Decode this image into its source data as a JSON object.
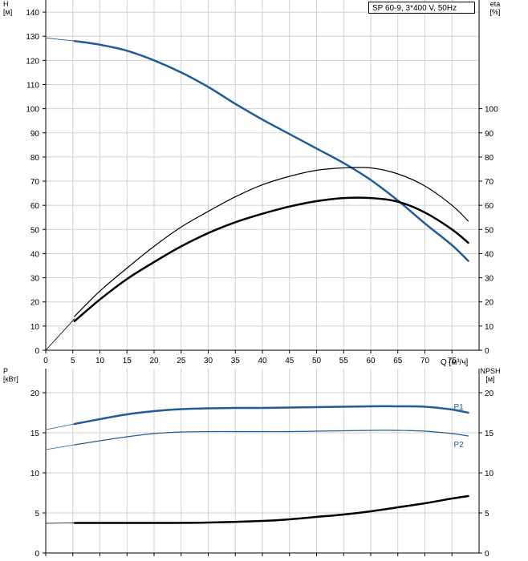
{
  "model_label": "SP 60-9, 3*400 V, 50Hz",
  "colors": {
    "blue": "#1f5c99",
    "black": "#000000",
    "grid": "#d0d0d0"
  },
  "chart_data": [
    {
      "type": "line",
      "title": "",
      "xlabel": "Q [м³/ч]",
      "ylabel": "H\n[м]",
      "y2label": "eta\n[%]",
      "xlim": [
        0,
        80
      ],
      "ylim": [
        0,
        145
      ],
      "y2lim": [
        0,
        145
      ],
      "xticks": [
        0,
        5,
        10,
        15,
        20,
        25,
        30,
        35,
        40,
        45,
        50,
        55,
        60,
        65,
        70,
        75
      ],
      "yticks": [
        0,
        10,
        20,
        30,
        40,
        50,
        60,
        70,
        80,
        90,
        100,
        110,
        120,
        130,
        140
      ],
      "y2ticks": [
        0,
        10,
        20,
        30,
        40,
        50,
        60,
        70,
        80,
        90,
        100
      ],
      "grid": true,
      "series": [
        {
          "key": "H",
          "color": "#1f5c99",
          "width": 2.5,
          "axis": "left",
          "x": [
            5.3,
            10,
            15,
            20,
            25,
            30,
            35,
            40,
            45,
            50,
            55,
            60,
            65,
            70,
            75,
            78
          ],
          "y": [
            128,
            126.5,
            124,
            120,
            115,
            109,
            102,
            95.5,
            89.5,
            83.5,
            77.5,
            70.5,
            62,
            52.5,
            43.5,
            37
          ]
        },
        {
          "key": "H-extension",
          "color": "#1f5c99",
          "width": 0.8,
          "axis": "left",
          "x": [
            0,
            5.3
          ],
          "y": [
            129.3,
            128
          ]
        },
        {
          "key": "eta-pump",
          "color": "#000000",
          "width": 1.2,
          "axis": "right",
          "x": [
            5.3,
            10,
            15,
            20,
            25,
            30,
            35,
            40,
            45,
            50,
            55,
            60,
            65,
            70,
            75,
            78
          ],
          "y": [
            14,
            24.5,
            34,
            43,
            51,
            57.5,
            63.5,
            68.5,
            72,
            74.5,
            75.5,
            75.5,
            73,
            68,
            60,
            53.5
          ]
        },
        {
          "key": "eta-total",
          "color": "#000000",
          "width": 2.5,
          "axis": "right",
          "x": [
            5.3,
            10,
            15,
            20,
            25,
            30,
            35,
            40,
            45,
            50,
            55,
            60,
            65,
            70,
            75,
            78
          ],
          "y": [
            12,
            21,
            29.5,
            36.5,
            43,
            48.5,
            53,
            56.5,
            59.5,
            61.7,
            63,
            63,
            61.5,
            57,
            50,
            44.5
          ]
        },
        {
          "key": "eta-extension",
          "color": "#000000",
          "width": 0.8,
          "axis": "right",
          "x": [
            0,
            5.3
          ],
          "y": [
            0,
            13
          ]
        }
      ]
    },
    {
      "type": "line",
      "title": "",
      "xlabel": "",
      "ylabel": "P\n[кВт]",
      "y2label": "NPSH\n[м]",
      "xlim": [
        0,
        80
      ],
      "ylim": [
        0,
        23
      ],
      "y2lim": [
        0,
        23
      ],
      "xticks": [
        0,
        5,
        10,
        15,
        20,
        25,
        30,
        35,
        40,
        45,
        50,
        55,
        60,
        65,
        70,
        75
      ],
      "yticks": [
        0,
        5,
        10,
        15,
        20
      ],
      "y2ticks": [
        0,
        5,
        10,
        15,
        20
      ],
      "grid": true,
      "series": [
        {
          "key": "P1",
          "name": "P1",
          "color": "#1f5c99",
          "width": 2.5,
          "axis": "left",
          "x": [
            5.3,
            10,
            15,
            20,
            25,
            30,
            35,
            40,
            45,
            50,
            55,
            60,
            65,
            70,
            75,
            78
          ],
          "y": [
            16.1,
            16.7,
            17.3,
            17.7,
            17.95,
            18.05,
            18.1,
            18.1,
            18.15,
            18.2,
            18.25,
            18.3,
            18.3,
            18.25,
            17.9,
            17.5
          ]
        },
        {
          "key": "P1-extension",
          "color": "#1f5c99",
          "width": 0.8,
          "axis": "left",
          "x": [
            0,
            5.3
          ],
          "y": [
            15.4,
            16.1
          ]
        },
        {
          "key": "P2",
          "name": "P2",
          "color": "#1f5c99",
          "width": 1.2,
          "axis": "left",
          "x": [
            5.3,
            10,
            15,
            20,
            25,
            30,
            35,
            40,
            45,
            50,
            55,
            60,
            65,
            70,
            75,
            78
          ],
          "y": [
            13.5,
            14.0,
            14.5,
            14.9,
            15.1,
            15.15,
            15.15,
            15.15,
            15.15,
            15.2,
            15.25,
            15.3,
            15.3,
            15.2,
            14.9,
            14.6
          ]
        },
        {
          "key": "P2-extension",
          "color": "#1f5c99",
          "width": 0.8,
          "axis": "left",
          "x": [
            0,
            5.3
          ],
          "y": [
            12.9,
            13.5
          ]
        },
        {
          "key": "NPSH",
          "color": "#000000",
          "width": 2.5,
          "axis": "right",
          "x": [
            5.3,
            10,
            20,
            30,
            40,
            45,
            50,
            55,
            60,
            65,
            70,
            75,
            78
          ],
          "y": [
            3.75,
            3.75,
            3.75,
            3.8,
            4.0,
            4.2,
            4.5,
            4.8,
            5.2,
            5.7,
            6.2,
            6.8,
            7.1
          ]
        },
        {
          "key": "NPSH-extension",
          "color": "#000000",
          "width": 0.8,
          "axis": "right",
          "x": [
            0,
            5.3
          ],
          "y": [
            3.7,
            3.75
          ]
        }
      ]
    }
  ]
}
